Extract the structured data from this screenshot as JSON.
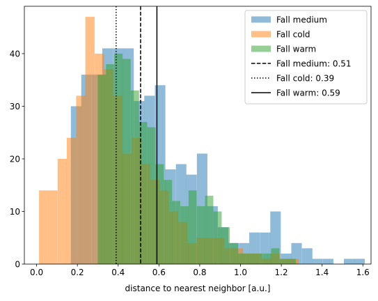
{
  "chart_data": {
    "type": "bar",
    "xlabel": "distance to nearest neighbor [a.u.]",
    "ylabel": "",
    "xlim": [
      -0.06,
      1.64
    ],
    "ylim": [
      0,
      49
    ],
    "xticks": [
      0.0,
      0.2,
      0.4,
      0.6,
      0.8,
      1.0,
      1.2,
      1.4,
      1.6
    ],
    "xtick_labels": [
      "0.0",
      "0.2",
      "0.4",
      "0.6",
      "0.8",
      "1.0",
      "1.2",
      "1.4",
      "1.6"
    ],
    "yticks": [
      0,
      10,
      20,
      30,
      40
    ],
    "ytick_labels": [
      "0",
      "10",
      "20",
      "30",
      "40"
    ],
    "grid": false,
    "legend_position": "top-right",
    "series": [
      {
        "name": "Fall medium",
        "color": "#1f77b4",
        "bin_width": 0.0515,
        "bins": [
          {
            "x0": 0.168,
            "count": 30
          },
          {
            "x0": 0.219,
            "count": 36
          },
          {
            "x0": 0.271,
            "count": 36
          },
          {
            "x0": 0.322,
            "count": 41
          },
          {
            "x0": 0.374,
            "count": 41
          },
          {
            "x0": 0.425,
            "count": 41
          },
          {
            "x0": 0.477,
            "count": 31
          },
          {
            "x0": 0.528,
            "count": 32
          },
          {
            "x0": 0.58,
            "count": 34
          },
          {
            "x0": 0.631,
            "count": 18
          },
          {
            "x0": 0.683,
            "count": 19
          },
          {
            "x0": 0.734,
            "count": 17
          },
          {
            "x0": 0.786,
            "count": 21
          },
          {
            "x0": 0.837,
            "count": 11
          },
          {
            "x0": 0.889,
            "count": 7
          },
          {
            "x0": 0.94,
            "count": 4
          },
          {
            "x0": 0.992,
            "count": 4
          },
          {
            "x0": 1.043,
            "count": 6
          },
          {
            "x0": 1.095,
            "count": 6
          },
          {
            "x0": 1.146,
            "count": 10
          },
          {
            "x0": 1.198,
            "count": 2
          },
          {
            "x0": 1.249,
            "count": 4
          },
          {
            "x0": 1.301,
            "count": 3
          },
          {
            "x0": 1.352,
            "count": 1
          },
          {
            "x0": 1.404,
            "count": 1
          },
          {
            "x0": 1.507,
            "count": 1
          },
          {
            "x0": 1.558,
            "count": 1
          }
        ]
      },
      {
        "name": "Fall cold",
        "color": "#ff7f0e",
        "bin_width": 0.0455,
        "bins": [
          {
            "x0": 0.012,
            "count": 14
          },
          {
            "x0": 0.057,
            "count": 14
          },
          {
            "x0": 0.103,
            "count": 20
          },
          {
            "x0": 0.148,
            "count": 24
          },
          {
            "x0": 0.194,
            "count": 32
          },
          {
            "x0": 0.239,
            "count": 47
          },
          {
            "x0": 0.285,
            "count": 40
          },
          {
            "x0": 0.33,
            "count": 37
          },
          {
            "x0": 0.376,
            "count": 32
          },
          {
            "x0": 0.421,
            "count": 21
          },
          {
            "x0": 0.467,
            "count": 24
          },
          {
            "x0": 0.512,
            "count": 19
          },
          {
            "x0": 0.558,
            "count": 16
          },
          {
            "x0": 0.603,
            "count": 14
          },
          {
            "x0": 0.649,
            "count": 10
          },
          {
            "x0": 0.694,
            "count": 8
          },
          {
            "x0": 0.74,
            "count": 4
          },
          {
            "x0": 0.785,
            "count": 5
          },
          {
            "x0": 0.831,
            "count": 5
          },
          {
            "x0": 0.876,
            "count": 5
          },
          {
            "x0": 0.922,
            "count": 3
          },
          {
            "x0": 0.967,
            "count": 3
          },
          {
            "x0": 1.013,
            "count": 2
          },
          {
            "x0": 1.058,
            "count": 2
          },
          {
            "x0": 1.104,
            "count": 1
          },
          {
            "x0": 1.149,
            "count": 2
          },
          {
            "x0": 1.195,
            "count": 1
          },
          {
            "x0": 1.24,
            "count": 1
          }
        ]
      },
      {
        "name": "Fall warm",
        "color": "#2ca02c",
        "bin_width": 0.0405,
        "bins": [
          {
            "x0": 0.3,
            "count": 36
          },
          {
            "x0": 0.34,
            "count": 38
          },
          {
            "x0": 0.381,
            "count": 40
          },
          {
            "x0": 0.421,
            "count": 39
          },
          {
            "x0": 0.462,
            "count": 33
          },
          {
            "x0": 0.502,
            "count": 27
          },
          {
            "x0": 0.543,
            "count": 26
          },
          {
            "x0": 0.583,
            "count": 19
          },
          {
            "x0": 0.624,
            "count": 16
          },
          {
            "x0": 0.664,
            "count": 12
          },
          {
            "x0": 0.705,
            "count": 11
          },
          {
            "x0": 0.745,
            "count": 14
          },
          {
            "x0": 0.786,
            "count": 11
          },
          {
            "x0": 0.826,
            "count": 13
          },
          {
            "x0": 0.867,
            "count": 10
          },
          {
            "x0": 0.907,
            "count": 7
          },
          {
            "x0": 0.948,
            "count": 4
          },
          {
            "x0": 0.988,
            "count": 2
          },
          {
            "x0": 1.029,
            "count": 2
          },
          {
            "x0": 1.069,
            "count": 2
          },
          {
            "x0": 1.11,
            "count": 2
          },
          {
            "x0": 1.15,
            "count": 3
          },
          {
            "x0": 1.191,
            "count": 1
          },
          {
            "x0": 1.231,
            "count": 1
          }
        ]
      }
    ],
    "vlines": [
      {
        "label": "Fall medium: 0.51",
        "x": 0.51,
        "style": "dashed",
        "color": "#000000"
      },
      {
        "label": "Fall cold: 0.39",
        "x": 0.39,
        "style": "dotted",
        "color": "#000000"
      },
      {
        "label": "Fall warm: 0.59",
        "x": 0.59,
        "style": "solid",
        "color": "#000000"
      }
    ],
    "bar_alpha": 0.5
  }
}
